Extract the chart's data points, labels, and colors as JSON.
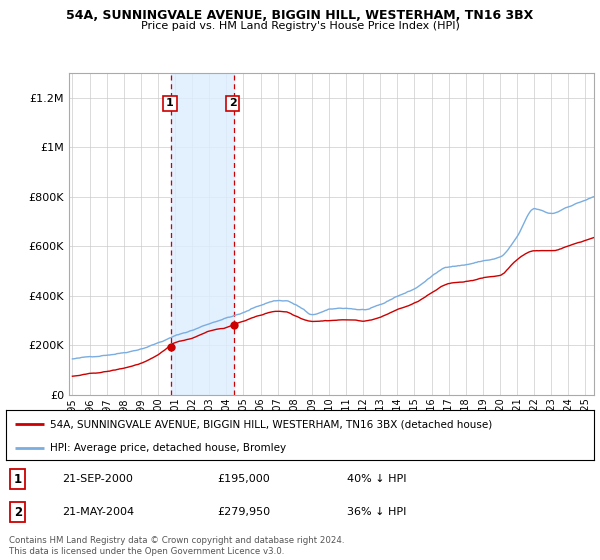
{
  "title": "54A, SUNNINGVALE AVENUE, BIGGIN HILL, WESTERHAM, TN16 3BX",
  "subtitle": "Price paid vs. HM Land Registry's House Price Index (HPI)",
  "ylabel_ticks": [
    "£0",
    "£200K",
    "£400K",
    "£600K",
    "£800K",
    "£1M",
    "£1.2M"
  ],
  "ytick_values": [
    0,
    200000,
    400000,
    600000,
    800000,
    1000000,
    1200000
  ],
  "ylim": [
    0,
    1300000
  ],
  "red_line_color": "#cc0000",
  "blue_line_color": "#7aade0",
  "grid_color": "#cccccc",
  "background_color": "#ffffff",
  "legend_label_red": "54A, SUNNINGVALE AVENUE, BIGGIN HILL, WESTERHAM, TN16 3BX (detached house)",
  "legend_label_blue": "HPI: Average price, detached house, Bromley",
  "transaction_1_date": "21-SEP-2000",
  "transaction_1_price": "£195,000",
  "transaction_1_info": "40% ↓ HPI",
  "transaction_2_date": "21-MAY-2004",
  "transaction_2_price": "£279,950",
  "transaction_2_info": "36% ↓ HPI",
  "footnote": "Contains HM Land Registry data © Crown copyright and database right 2024.\nThis data is licensed under the Open Government Licence v3.0.",
  "shade_color": "#ddeeff",
  "dashed_line_color": "#cc0000",
  "marker_color": "#cc0000",
  "t1_year": 2000.75,
  "t2_year": 2004.42,
  "t1_price": 195000,
  "t2_price": 279950,
  "xmin": 1995.0,
  "xmax": 2025.5
}
